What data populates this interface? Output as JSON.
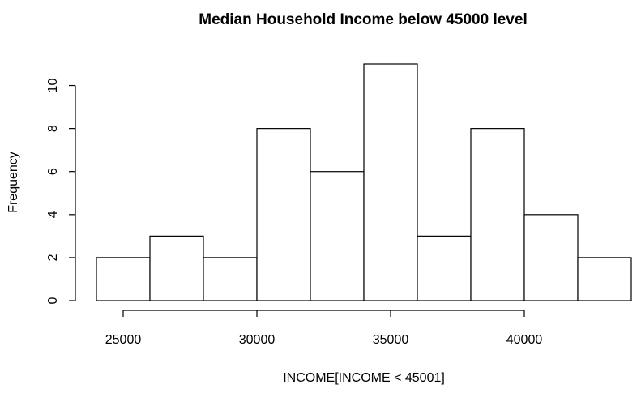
{
  "chart_data": {
    "type": "histogram",
    "title": "Median Household Income below 45000 level",
    "xlabel": "INCOME[INCOME < 45001]",
    "ylabel": "Frequency",
    "bins": [
      {
        "start": 24000,
        "end": 26000,
        "count": 2
      },
      {
        "start": 26000,
        "end": 28000,
        "count": 3
      },
      {
        "start": 28000,
        "end": 30000,
        "count": 2
      },
      {
        "start": 30000,
        "end": 32000,
        "count": 8
      },
      {
        "start": 32000,
        "end": 34000,
        "count": 6
      },
      {
        "start": 34000,
        "end": 36000,
        "count": 11
      },
      {
        "start": 36000,
        "end": 38000,
        "count": 3
      },
      {
        "start": 38000,
        "end": 40000,
        "count": 8
      },
      {
        "start": 40000,
        "end": 42000,
        "count": 4
      },
      {
        "start": 42000,
        "end": 44000,
        "count": 2
      }
    ],
    "x_ticks": [
      "25000",
      "30000",
      "35000",
      "40000"
    ],
    "y_ticks": [
      "0",
      "2",
      "4",
      "6",
      "8",
      "10"
    ],
    "xlim": [
      24000,
      44000
    ],
    "ylim": [
      0,
      11
    ],
    "grid": false,
    "bar_fill": "#ffffff",
    "bar_stroke": "#000000"
  }
}
